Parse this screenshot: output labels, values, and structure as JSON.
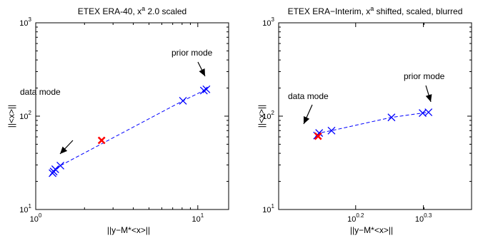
{
  "chart_data": [
    {
      "type": "scatter",
      "title_main": "ETEX ERA-40, x",
      "title_sup": "a",
      "title_rest": " 2.0 scaled",
      "xlabel": "||y−M*<x>||",
      "ylabel": "||<x>||",
      "xscale": "log",
      "yscale": "log",
      "xlim": [
        1,
        15.5
      ],
      "ylim": [
        10,
        1000
      ],
      "xticks": [
        {
          "value": 1,
          "base": "10",
          "exp": "0"
        },
        {
          "value": 10,
          "base": "10",
          "exp": "1"
        }
      ],
      "yticks": [
        {
          "value": 10,
          "base": "10",
          "exp": "1"
        },
        {
          "value": 100,
          "base": "10",
          "exp": "2"
        },
        {
          "value": 1000,
          "base": "10",
          "exp": "3"
        }
      ],
      "series": [
        {
          "line_color": "#0000ff",
          "marker_color": "#0000ff",
          "x": [
            1.27,
            1.29,
            1.32,
            1.42,
            8.1,
            10.9,
            11.3
          ],
          "y": [
            24.5,
            25.5,
            27.0,
            29.5,
            146,
            188,
            194
          ]
        }
      ],
      "highlight": {
        "color": "#ff0000",
        "x": [
          2.55
        ],
        "y": [
          55
        ]
      },
      "annotations": [
        {
          "text": "data mode",
          "target_x": 1.27,
          "target_y": 34
        },
        {
          "text": "prior mode",
          "target_x": 10.8,
          "target_y": 220
        }
      ]
    },
    {
      "type": "scatter",
      "title_main": "ETEX ERA−Interim, x",
      "title_sup": "a",
      "title_rest": " shifted, scaled, blurred",
      "xlabel": "||y−M*<x>||",
      "ylabel": "||<x>||",
      "xscale": "log",
      "yscale": "log",
      "xlim": [
        1.22,
        2.35
      ],
      "ylim": [
        10,
        1000
      ],
      "xticks": [
        {
          "value": 1.5849,
          "base": "10",
          "exp": "0.2"
        },
        {
          "value": 1.9953,
          "base": "10",
          "exp": "0.3"
        }
      ],
      "yticks": [
        {
          "value": 10,
          "base": "10",
          "exp": "1"
        },
        {
          "value": 100,
          "base": "10",
          "exp": "2"
        },
        {
          "value": 1000,
          "base": "10",
          "exp": "3"
        }
      ],
      "series": [
        {
          "line_color": "#0000ff",
          "marker_color": "#0000ff",
          "x": [
            1.39,
            1.4,
            1.46,
            1.79,
            1.99,
            2.03
          ],
          "y": [
            62,
            66,
            70,
            97,
            108,
            110
          ]
        }
      ],
      "highlight": {
        "color": "#ff0000",
        "x": [
          1.395
        ],
        "y": [
          61
        ]
      },
      "annotations": [
        {
          "text": "data mode",
          "target_x": 1.39,
          "target_y": 78
        },
        {
          "text": "prior mode",
          "target_x": 2.01,
          "target_y": 120
        }
      ]
    }
  ]
}
